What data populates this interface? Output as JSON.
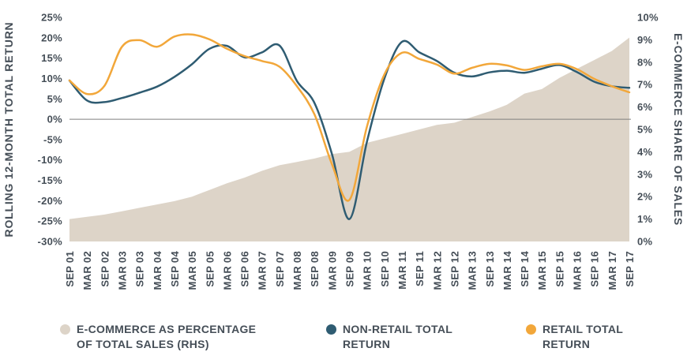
{
  "chart_data": {
    "type": "combo-area-line",
    "x_labels": [
      "SEP 01",
      "MAR 02",
      "SEP 02",
      "MAR 03",
      "SEP 03",
      "MAR 04",
      "SEP 04",
      "MAR 05",
      "SEP 05",
      "MAR 06",
      "SEP 06",
      "MAR 07",
      "SEP 07",
      "MAR 08",
      "SEP 08",
      "MAR 09",
      "SEP 09",
      "MAR 10",
      "SEP 10",
      "MAR 11",
      "SEP 11",
      "MAR 12",
      "SEP 12",
      "MAR 13",
      "SEP 13",
      "MAR 14",
      "SEP 14",
      "MAR 15",
      "SEP 15",
      "MAR 16",
      "SEP 16",
      "MAR 17",
      "SEP 17"
    ],
    "left_axis": {
      "title": "ROLLING 12-MONTH TOTAL RETURN",
      "max": 25,
      "min": -30,
      "tick_values": [
        25,
        20,
        15,
        10,
        5,
        0,
        -5,
        -10,
        -15,
        -20,
        -25,
        -30
      ],
      "tick_labels": [
        "25%",
        "20%",
        "15%",
        "10%",
        "5%",
        "0%",
        "-5%",
        "-10%",
        "-15%",
        "-20%",
        "-25%",
        "-30%"
      ]
    },
    "right_axis": {
      "title": "E-COMMERCE SHARE OF SALES",
      "max": 10,
      "min": 0,
      "tick_values": [
        10,
        9,
        8,
        7,
        6,
        5,
        4,
        3,
        2,
        1,
        0
      ],
      "tick_labels": [
        "10%",
        "9%",
        "8%",
        "7%",
        "6%",
        "5%",
        "4%",
        "3%",
        "2%",
        "1%",
        "0%"
      ]
    },
    "zero_line": {
      "axis": "left",
      "value": 0,
      "color": "#7F7F7F"
    },
    "grid": false,
    "legend_position": "bottom",
    "series": [
      {
        "id": "ecommerce-share",
        "name": "E-COMMERCE AS PERCENTAGE OF TOTAL SALES (RHS)",
        "type": "area",
        "axis": "right",
        "color": "#DDD4C8",
        "values": [
          1.0,
          1.1,
          1.2,
          1.35,
          1.5,
          1.65,
          1.8,
          2.0,
          2.3,
          2.6,
          2.85,
          3.15,
          3.4,
          3.55,
          3.7,
          3.9,
          4.0,
          4.4,
          4.6,
          4.8,
          5.0,
          5.2,
          5.3,
          5.55,
          5.8,
          6.1,
          6.6,
          6.8,
          7.3,
          7.7,
          8.1,
          8.5,
          9.1
        ]
      },
      {
        "id": "non-retail",
        "name": "NON-RETAIL TOTAL RETURN",
        "type": "line",
        "axis": "left",
        "color": "#2F5C72",
        "values": [
          9.5,
          4.6,
          4.2,
          5.2,
          6.5,
          8.0,
          10.4,
          13.5,
          17.3,
          18.0,
          15.2,
          16.4,
          18.1,
          9.4,
          4.0,
          -8.5,
          -24.5,
          -5.5,
          10.0,
          19.0,
          16.4,
          14.3,
          11.4,
          10.5,
          11.5,
          11.9,
          11.4,
          12.4,
          13.3,
          11.6,
          9.2,
          8.1,
          7.7
        ]
      },
      {
        "id": "retail",
        "name": "RETAIL TOTAL RETURN",
        "type": "line",
        "axis": "left",
        "color": "#F2A73A",
        "values": [
          9.5,
          6.2,
          8.2,
          17.8,
          19.4,
          17.8,
          20.3,
          20.8,
          19.6,
          17.3,
          15.5,
          14.3,
          12.9,
          8.1,
          1.2,
          -11.0,
          -19.8,
          -1.8,
          11.0,
          16.3,
          14.8,
          13.4,
          11.2,
          12.6,
          13.6,
          13.2,
          12.1,
          13.0,
          13.6,
          12.3,
          9.9,
          8.1,
          6.6
        ]
      }
    ]
  },
  "legend": {
    "items": [
      {
        "series_id": "ecommerce-share",
        "color": "#DDD4C8",
        "lines": [
          "E-COMMERCE AS PERCENTAGE",
          "OF TOTAL SALES (RHS)"
        ]
      },
      {
        "series_id": "non-retail",
        "color": "#2F5C72",
        "lines": [
          "NON-RETAIL TOTAL",
          "RETURN"
        ]
      },
      {
        "series_id": "retail",
        "color": "#F2A73A",
        "lines": [
          "RETAIL TOTAL",
          "RETURN"
        ]
      }
    ]
  },
  "colors": {
    "text": "#454E57",
    "background": "#FFFFFF",
    "zero_line": "#7F7F7F"
  }
}
